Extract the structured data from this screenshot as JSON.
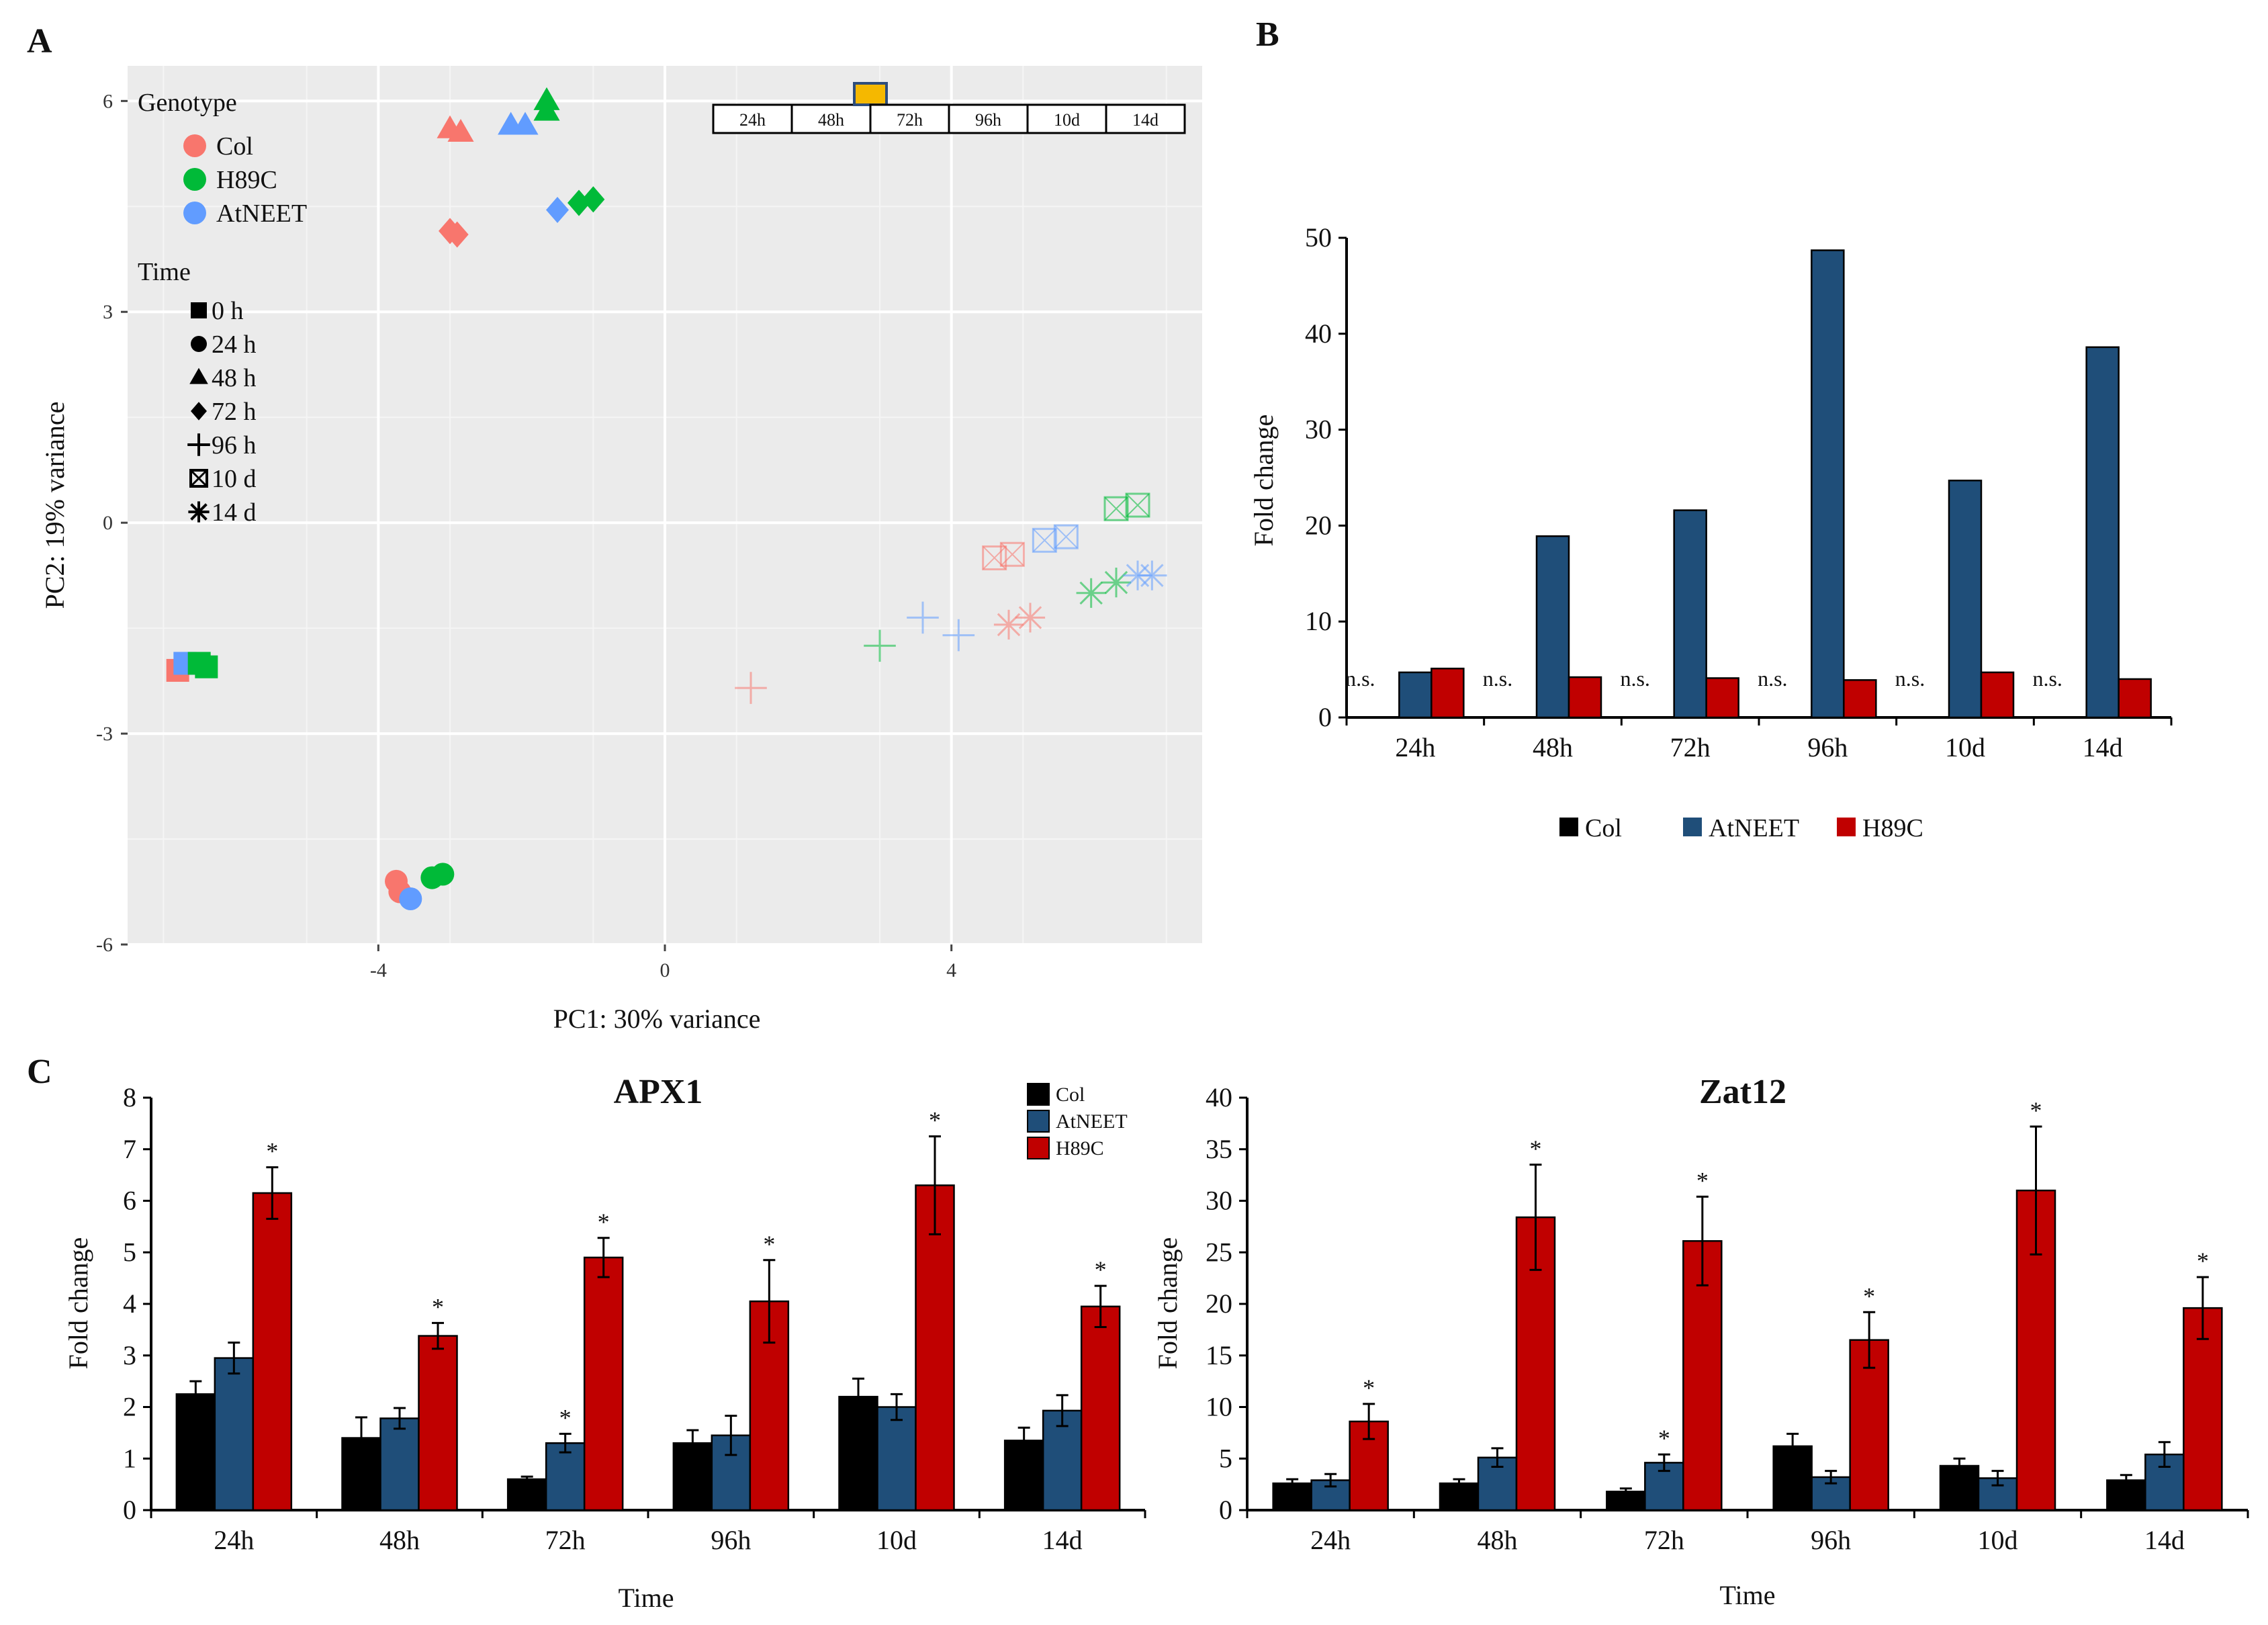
{
  "panels": {
    "a": "A",
    "b": "B",
    "c": "C"
  },
  "pca": {
    "xlabel": "PC1: 30% variance",
    "ylabel": "PC2: 19% variance",
    "xlim": [
      -7.5,
      7.5
    ],
    "ylim": [
      -6,
      6.5
    ],
    "xticks": [
      -4,
      0,
      4
    ],
    "yticks": [
      6,
      3,
      0,
      -3,
      -6
    ],
    "genotype_title": "Genotype",
    "genotype_legend": [
      {
        "label": "Col",
        "color": "#f8766d"
      },
      {
        "label": "H89C",
        "color": "#00ba38"
      },
      {
        "label": "AtNEET",
        "color": "#619cff"
      }
    ],
    "time_title": "Time",
    "time_legend": [
      {
        "label": "0 h",
        "shape": "square-icon"
      },
      {
        "label": "24 h",
        "shape": "circle-icon"
      },
      {
        "label": "48 h",
        "shape": "triangle-icon"
      },
      {
        "label": "72 h",
        "shape": "diamond-icon"
      },
      {
        "label": "96 h",
        "shape": "plus-icon"
      },
      {
        "label": "10 d",
        "shape": "boxed-x-icon"
      },
      {
        "label": "14 d",
        "shape": "asterisk-icon"
      }
    ],
    "timeline": {
      "labels": [
        "24h",
        "48h",
        "72h",
        "96h",
        "10d",
        "14d"
      ],
      "highlight": "48h",
      "highlight_color": "#f5b800"
    },
    "points": [
      {
        "t": "0 h",
        "g": "Col",
        "x": -6.8,
        "y": -2.1
      },
      {
        "t": "0 h",
        "g": "AtNEET",
        "x": -6.7,
        "y": -2.0
      },
      {
        "t": "0 h",
        "g": "H89C",
        "x": -6.5,
        "y": -2.0
      },
      {
        "t": "0 h",
        "g": "H89C",
        "x": -6.4,
        "y": -2.05
      },
      {
        "t": "24 h",
        "g": "Col",
        "x": -3.75,
        "y": -5.1
      },
      {
        "t": "24 h",
        "g": "Col",
        "x": -3.7,
        "y": -5.25
      },
      {
        "t": "24 h",
        "g": "AtNEET",
        "x": -3.55,
        "y": -5.35
      },
      {
        "t": "24 h",
        "g": "H89C",
        "x": -3.25,
        "y": -5.05
      },
      {
        "t": "24 h",
        "g": "H89C",
        "x": -3.1,
        "y": -5.0
      },
      {
        "t": "48 h",
        "g": "Col",
        "x": -3.0,
        "y": 5.6
      },
      {
        "t": "48 h",
        "g": "Col",
        "x": -2.85,
        "y": 5.55
      },
      {
        "t": "48 h",
        "g": "AtNEET",
        "x": -2.15,
        "y": 5.65
      },
      {
        "t": "48 h",
        "g": "AtNEET",
        "x": -1.95,
        "y": 5.65
      },
      {
        "t": "48 h",
        "g": "H89C",
        "x": -1.65,
        "y": 6.0
      },
      {
        "t": "48 h",
        "g": "H89C",
        "x": -1.65,
        "y": 5.85
      },
      {
        "t": "72 h",
        "g": "Col",
        "x": -3.0,
        "y": 4.15
      },
      {
        "t": "72 h",
        "g": "Col",
        "x": -2.9,
        "y": 4.1
      },
      {
        "t": "72 h",
        "g": "AtNEET",
        "x": -1.5,
        "y": 4.45
      },
      {
        "t": "72 h",
        "g": "H89C",
        "x": -1.2,
        "y": 4.55
      },
      {
        "t": "72 h",
        "g": "H89C",
        "x": -1.0,
        "y": 4.6
      },
      {
        "t": "96 h",
        "g": "Col",
        "x": 1.2,
        "y": -2.35
      },
      {
        "t": "96 h",
        "g": "H89C",
        "x": 3.0,
        "y": -1.75
      },
      {
        "t": "96 h",
        "g": "AtNEET",
        "x": 3.6,
        "y": -1.35
      },
      {
        "t": "96 h",
        "g": "AtNEET",
        "x": 4.1,
        "y": -1.6
      },
      {
        "t": "10 d",
        "g": "Col",
        "x": 4.6,
        "y": -0.5
      },
      {
        "t": "10 d",
        "g": "Col",
        "x": 4.85,
        "y": -0.45
      },
      {
        "t": "10 d",
        "g": "AtNEET",
        "x": 5.3,
        "y": -0.25
      },
      {
        "t": "10 d",
        "g": "AtNEET",
        "x": 5.6,
        "y": -0.2
      },
      {
        "t": "10 d",
        "g": "H89C",
        "x": 6.3,
        "y": 0.2
      },
      {
        "t": "10 d",
        "g": "H89C",
        "x": 6.6,
        "y": 0.25
      },
      {
        "t": "14 d",
        "g": "Col",
        "x": 4.8,
        "y": -1.45
      },
      {
        "t": "14 d",
        "g": "Col",
        "x": 5.1,
        "y": -1.35
      },
      {
        "t": "14 d",
        "g": "H89C",
        "x": 5.95,
        "y": -1.0
      },
      {
        "t": "14 d",
        "g": "H89C",
        "x": 6.3,
        "y": -0.85
      },
      {
        "t": "14 d",
        "g": "AtNEET",
        "x": 6.6,
        "y": -0.75
      },
      {
        "t": "14 d",
        "g": "AtNEET",
        "x": 6.8,
        "y": -0.75
      }
    ]
  },
  "chart_data": [
    {
      "type": "scatter",
      "title": "",
      "xlabel": "PC1: 30% variance",
      "ylabel": "PC2: 19% variance",
      "xlim": [
        -7.5,
        7.5
      ],
      "ylim": [
        -6,
        6.5
      ],
      "note": "PCA of samples; see pca.points for coordinates by genotype and time"
    },
    {
      "type": "bar",
      "title": "",
      "categories": [
        "24h",
        "48h",
        "72h",
        "96h",
        "10d",
        "14d"
      ],
      "ylabel": "Fold change",
      "ylim": [
        0,
        50
      ],
      "yticks": [
        0,
        10,
        20,
        30,
        40,
        50
      ],
      "series": [
        {
          "name": "Col",
          "color": "#000000",
          "values": [
            0,
            0,
            0,
            0,
            0,
            0
          ]
        },
        {
          "name": "AtNEET",
          "color": "#1f4e79",
          "values": [
            4.7,
            18.9,
            21.6,
            48.7,
            24.7,
            38.6
          ]
        },
        {
          "name": "H89C",
          "color": "#c00000",
          "values": [
            5.1,
            4.2,
            4.1,
            3.9,
            4.7,
            4.0
          ]
        }
      ],
      "annotations": [
        "n.s.",
        "n.s.",
        "n.s.",
        "n.s.",
        "n.s.",
        "n.s."
      ]
    },
    {
      "type": "bar",
      "title": "APX1",
      "categories": [
        "24h",
        "48h",
        "72h",
        "96h",
        "10d",
        "14d"
      ],
      "xlabel": "Time",
      "ylabel": "Fold change",
      "ylim": [
        0,
        8
      ],
      "yticks": [
        0,
        1,
        2,
        3,
        4,
        5,
        6,
        7,
        8
      ],
      "series": [
        {
          "name": "Col",
          "color": "#000000",
          "values": [
            2.25,
            1.4,
            0.6,
            1.3,
            2.2,
            1.35
          ],
          "errors": [
            0.25,
            0.4,
            0.05,
            0.25,
            0.35,
            0.25
          ],
          "stars": [
            false,
            false,
            false,
            false,
            false,
            false
          ]
        },
        {
          "name": "AtNEET",
          "color": "#1f4e79",
          "values": [
            2.95,
            1.78,
            1.3,
            1.45,
            2.0,
            1.93
          ],
          "errors": [
            0.3,
            0.2,
            0.18,
            0.38,
            0.25,
            0.3
          ],
          "stars": [
            false,
            false,
            true,
            false,
            false,
            false
          ]
        },
        {
          "name": "H89C",
          "color": "#c00000",
          "values": [
            6.15,
            3.38,
            4.9,
            4.05,
            6.3,
            3.95
          ],
          "errors": [
            0.5,
            0.25,
            0.38,
            0.8,
            0.95,
            0.4
          ],
          "stars": [
            true,
            true,
            true,
            true,
            true,
            true
          ]
        }
      ],
      "star_label": "*"
    },
    {
      "type": "bar",
      "title": "Zat12",
      "categories": [
        "24h",
        "48h",
        "72h",
        "96h",
        "10d",
        "14d"
      ],
      "xlabel": "Time",
      "ylabel": "Fold change",
      "ylim": [
        0,
        40
      ],
      "yticks": [
        0,
        5,
        10,
        15,
        20,
        25,
        30,
        35,
        40
      ],
      "series": [
        {
          "name": "Col",
          "color": "#000000",
          "values": [
            2.6,
            2.6,
            1.8,
            6.2,
            4.3,
            2.9
          ],
          "errors": [
            0.4,
            0.4,
            0.3,
            1.2,
            0.7,
            0.5
          ],
          "stars": [
            false,
            false,
            false,
            false,
            false,
            false
          ]
        },
        {
          "name": "AtNEET",
          "color": "#1f4e79",
          "values": [
            2.9,
            5.1,
            4.6,
            3.2,
            3.1,
            5.4
          ],
          "errors": [
            0.6,
            0.9,
            0.8,
            0.6,
            0.7,
            1.2
          ],
          "stars": [
            false,
            false,
            true,
            false,
            false,
            false
          ]
        },
        {
          "name": "H89C",
          "color": "#c00000",
          "values": [
            8.6,
            28.4,
            26.1,
            16.5,
            31.0,
            19.6
          ],
          "errors": [
            1.7,
            5.1,
            4.3,
            2.7,
            6.2,
            3.0
          ],
          "stars": [
            true,
            true,
            true,
            true,
            true,
            true
          ]
        }
      ],
      "star_label": "*"
    }
  ],
  "legends": {
    "bar_series": [
      "Col",
      "AtNEET",
      "H89C"
    ],
    "bar_colors": [
      "#000000",
      "#1f4e79",
      "#c00000"
    ]
  }
}
